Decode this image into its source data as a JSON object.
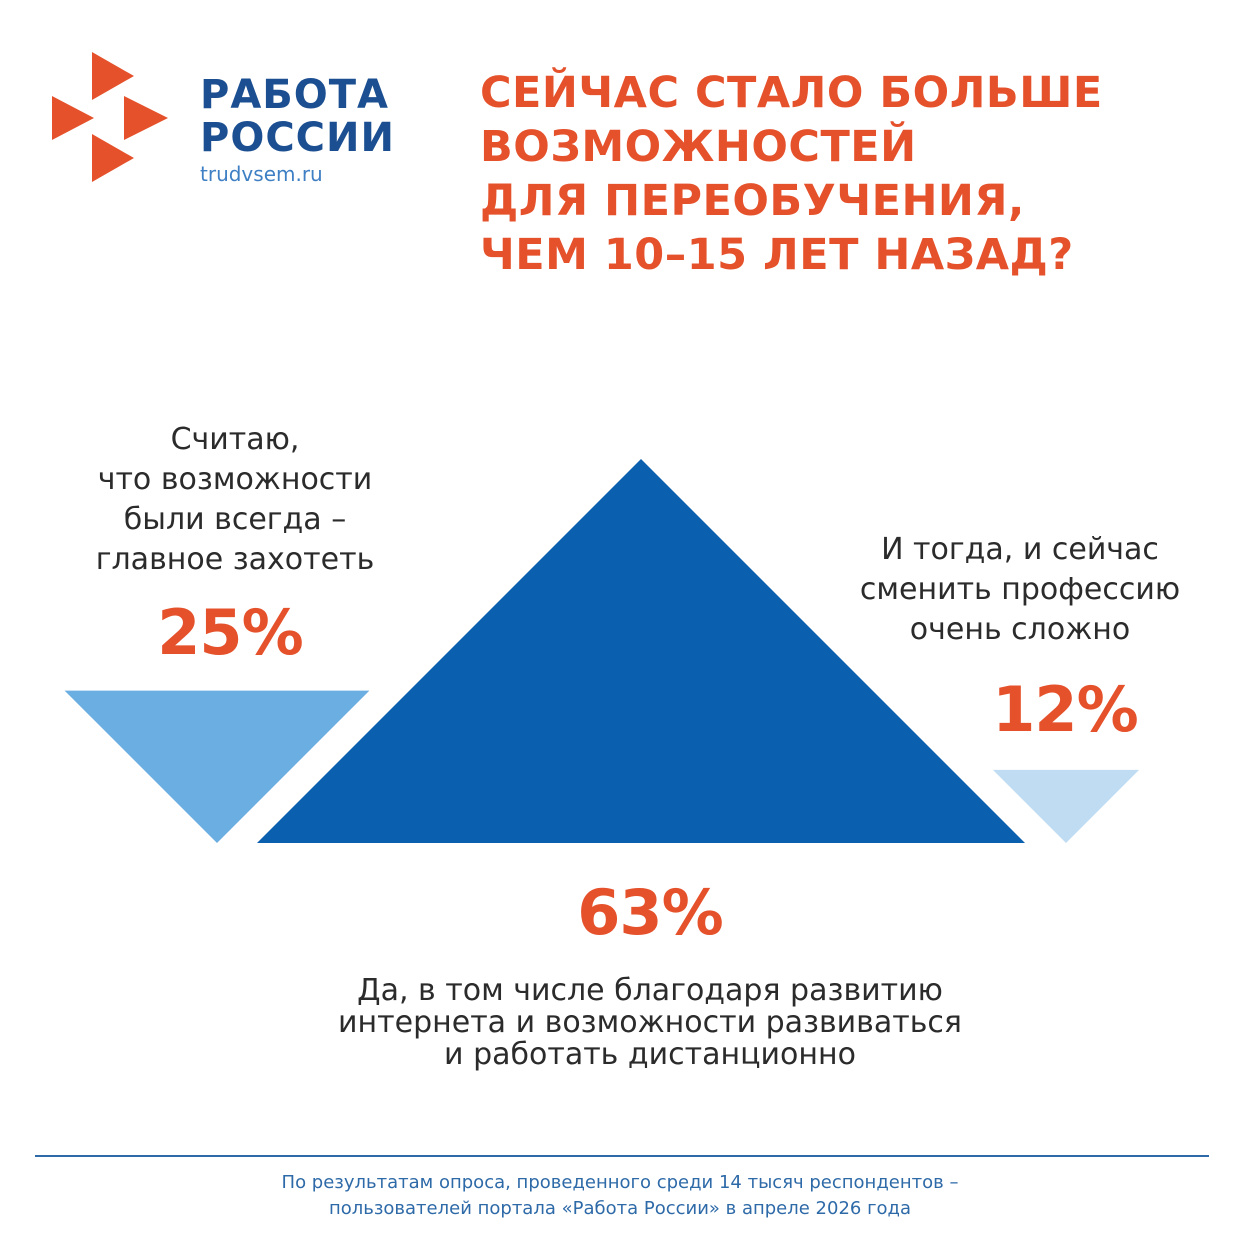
{
  "logo": {
    "line1": "РАБОТА",
    "line2": "РОССИИ",
    "url": "trudvsem.ru",
    "accent_color": "#e5512b",
    "text_color": "#1b4f91"
  },
  "headline": {
    "lines": [
      "СЕЙЧАС СТАЛО БОЛЬШЕ",
      "ВОЗМОЖНОСТЕЙ",
      "ДЛЯ ПЕРЕОБУЧЕНИЯ,",
      "ЧЕМ 10–15 ЛЕТ НАЗАД?"
    ],
    "color": "#e5512b"
  },
  "chart_data": {
    "type": "bar",
    "title": "СЕЙЧАС СТАЛО БОЛЬШЕ ВОЗМОЖНОСТЕЙ ДЛЯ ПЕРЕОБУЧЕНИЯ, ЧЕМ 10–15 ЛЕТ НАЗАД?",
    "unit": "%",
    "categories": [
      "Считаю, что возможности были всегда – главное захотеть",
      "Да, в том числе благодаря развитию интернета и возможности развиваться и работать дистанционно",
      "И тогда, и сейчас сменить профессию очень сложно"
    ],
    "values": [
      25,
      63,
      12
    ],
    "value_labels": [
      "25%",
      "63%",
      "12%"
    ],
    "colors": [
      "#6aaee2",
      "#0a5fae",
      "#bfdcf3"
    ],
    "label_lines": [
      [
        "Считаю,",
        "что возможности",
        "были всегда –",
        "главное захотеть"
      ],
      [
        "Да, в том числе благодаря развитию",
        "интернета и возможности развиваться",
        "и работать дистанционно"
      ],
      [
        "И тогда, и сейчас",
        "сменить профессию",
        "очень сложно"
      ]
    ]
  },
  "footnote": {
    "lines": [
      "По результатам опроса, проведенного среди 14 тысяч респондентов –",
      "пользователей портала «Работа России» в апреле 2026 года"
    ],
    "color": "#2e6aa8"
  }
}
